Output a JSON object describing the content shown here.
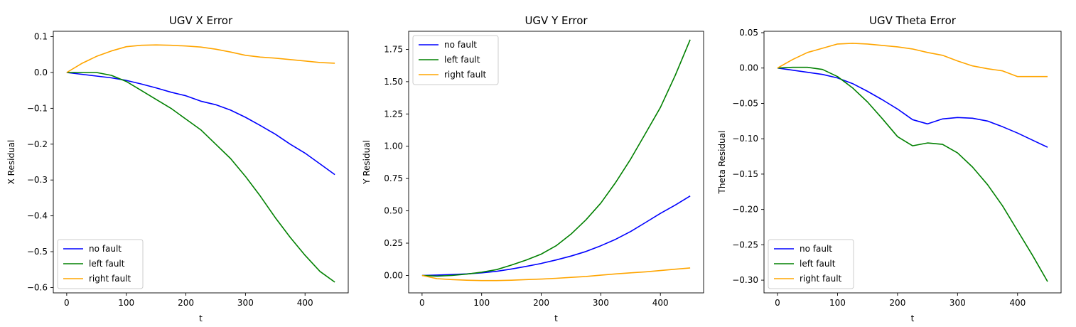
{
  "chart_data": [
    {
      "type": "line",
      "title": "UGV X Error",
      "xlabel": "t",
      "ylabel": "X Residual",
      "xlim": [
        -22.5,
        472.5
      ],
      "ylim": [
        -0.615,
        0.115
      ],
      "xticks": [
        0,
        100,
        200,
        300,
        400
      ],
      "xtick_labels": [
        "0",
        "100",
        "200",
        "300",
        "400"
      ],
      "yticks": [
        -0.6,
        -0.5,
        -0.4,
        -0.3,
        -0.2,
        -0.1,
        0.0,
        0.1
      ],
      "ytick_labels": [
        "−0.6",
        "−0.5",
        "−0.4",
        "−0.3",
        "−0.2",
        "−0.1",
        "0.0",
        "0.1"
      ],
      "legend_position": "lower-left",
      "grid": false,
      "x": [
        0,
        25,
        50,
        75,
        100,
        125,
        150,
        175,
        200,
        225,
        250,
        275,
        300,
        325,
        350,
        375,
        400,
        425,
        450
      ],
      "series": [
        {
          "name": "no fault",
          "color": "#0000ff",
          "values": [
            0.0,
            -0.005,
            -0.01,
            -0.015,
            -0.022,
            -0.032,
            -0.043,
            -0.055,
            -0.065,
            -0.08,
            -0.09,
            -0.105,
            -0.125,
            -0.148,
            -0.172,
            -0.2,
            -0.225,
            -0.255,
            -0.285
          ]
        },
        {
          "name": "left fault",
          "color": "#008000",
          "values": [
            0.0,
            0.0,
            0.0,
            -0.008,
            -0.025,
            -0.05,
            -0.075,
            -0.1,
            -0.13,
            -0.16,
            -0.2,
            -0.24,
            -0.29,
            -0.345,
            -0.405,
            -0.46,
            -0.51,
            -0.555,
            -0.585
          ]
        },
        {
          "name": "right fault",
          "color": "#ffa500",
          "values": [
            0.0,
            0.025,
            0.045,
            0.06,
            0.072,
            0.076,
            0.077,
            0.076,
            0.074,
            0.071,
            0.065,
            0.057,
            0.048,
            0.043,
            0.04,
            0.036,
            0.032,
            0.028,
            0.026
          ]
        }
      ]
    },
    {
      "type": "line",
      "title": "UGV Y Error",
      "xlabel": "t",
      "ylabel": "Y Residual",
      "xlim": [
        -22.5,
        472.5
      ],
      "ylim": [
        -0.135,
        1.89
      ],
      "xticks": [
        0,
        100,
        200,
        300,
        400
      ],
      "xtick_labels": [
        "0",
        "100",
        "200",
        "300",
        "400"
      ],
      "yticks": [
        0.0,
        0.25,
        0.5,
        0.75,
        1.0,
        1.25,
        1.5,
        1.75
      ],
      "ytick_labels": [
        "0.00",
        "0.25",
        "0.50",
        "0.75",
        "1.00",
        "1.25",
        "1.50",
        "1.75"
      ],
      "legend_position": "upper-left",
      "grid": false,
      "x": [
        0,
        25,
        50,
        75,
        100,
        125,
        150,
        175,
        200,
        225,
        250,
        275,
        300,
        325,
        350,
        375,
        400,
        425,
        450
      ],
      "series": [
        {
          "name": "no fault",
          "color": "#0000ff",
          "values": [
            0.0,
            0.003,
            0.007,
            0.012,
            0.02,
            0.032,
            0.05,
            0.07,
            0.093,
            0.12,
            0.15,
            0.185,
            0.23,
            0.28,
            0.34,
            0.41,
            0.48,
            0.545,
            0.615
          ]
        },
        {
          "name": "left fault",
          "color": "#008000",
          "values": [
            0.0,
            -0.005,
            0.0,
            0.01,
            0.025,
            0.045,
            0.08,
            0.12,
            0.165,
            0.23,
            0.32,
            0.43,
            0.56,
            0.72,
            0.9,
            1.1,
            1.3,
            1.55,
            1.825
          ]
        },
        {
          "name": "right fault",
          "color": "#ffa500",
          "values": [
            0.0,
            -0.025,
            -0.032,
            -0.037,
            -0.04,
            -0.04,
            -0.037,
            -0.032,
            -0.028,
            -0.022,
            -0.015,
            -0.008,
            0.002,
            0.012,
            0.02,
            0.028,
            0.038,
            0.048,
            0.058
          ]
        }
      ]
    },
    {
      "type": "line",
      "title": "UGV Theta Error",
      "xlabel": "t",
      "ylabel": "Theta Residual",
      "xlim": [
        -22.5,
        472.5
      ],
      "ylim": [
        -0.318,
        0.052
      ],
      "xticks": [
        0,
        100,
        200,
        300,
        400
      ],
      "xtick_labels": [
        "0",
        "100",
        "200",
        "300",
        "400"
      ],
      "yticks": [
        -0.3,
        -0.25,
        -0.2,
        -0.15,
        -0.1,
        -0.05,
        0.0,
        0.05
      ],
      "ytick_labels": [
        "−0.30",
        "−0.25",
        "−0.20",
        "−0.15",
        "−0.10",
        "−0.05",
        "0.00",
        "0.05"
      ],
      "legend_position": "lower-left",
      "grid": false,
      "x": [
        0,
        25,
        50,
        75,
        100,
        125,
        150,
        175,
        200,
        225,
        250,
        275,
        300,
        325,
        350,
        375,
        400,
        425,
        450
      ],
      "series": [
        {
          "name": "no fault",
          "color": "#0000ff",
          "values": [
            0.0,
            -0.003,
            -0.006,
            -0.009,
            -0.014,
            -0.022,
            -0.033,
            -0.045,
            -0.058,
            -0.073,
            -0.079,
            -0.072,
            -0.07,
            -0.071,
            -0.075,
            -0.083,
            -0.092,
            -0.102,
            -0.112
          ]
        },
        {
          "name": "left fault",
          "color": "#008000",
          "values": [
            0.0,
            0.001,
            0.001,
            -0.002,
            -0.012,
            -0.028,
            -0.048,
            -0.072,
            -0.097,
            -0.11,
            -0.106,
            -0.108,
            -0.12,
            -0.14,
            -0.165,
            -0.195,
            -0.23,
            -0.265,
            -0.302
          ]
        },
        {
          "name": "right fault",
          "color": "#ffa500",
          "values": [
            0.0,
            0.012,
            0.022,
            0.028,
            0.034,
            0.035,
            0.034,
            0.032,
            0.03,
            0.027,
            0.022,
            0.018,
            0.01,
            0.003,
            -0.001,
            -0.004,
            -0.012,
            -0.012,
            -0.012
          ]
        }
      ]
    }
  ]
}
